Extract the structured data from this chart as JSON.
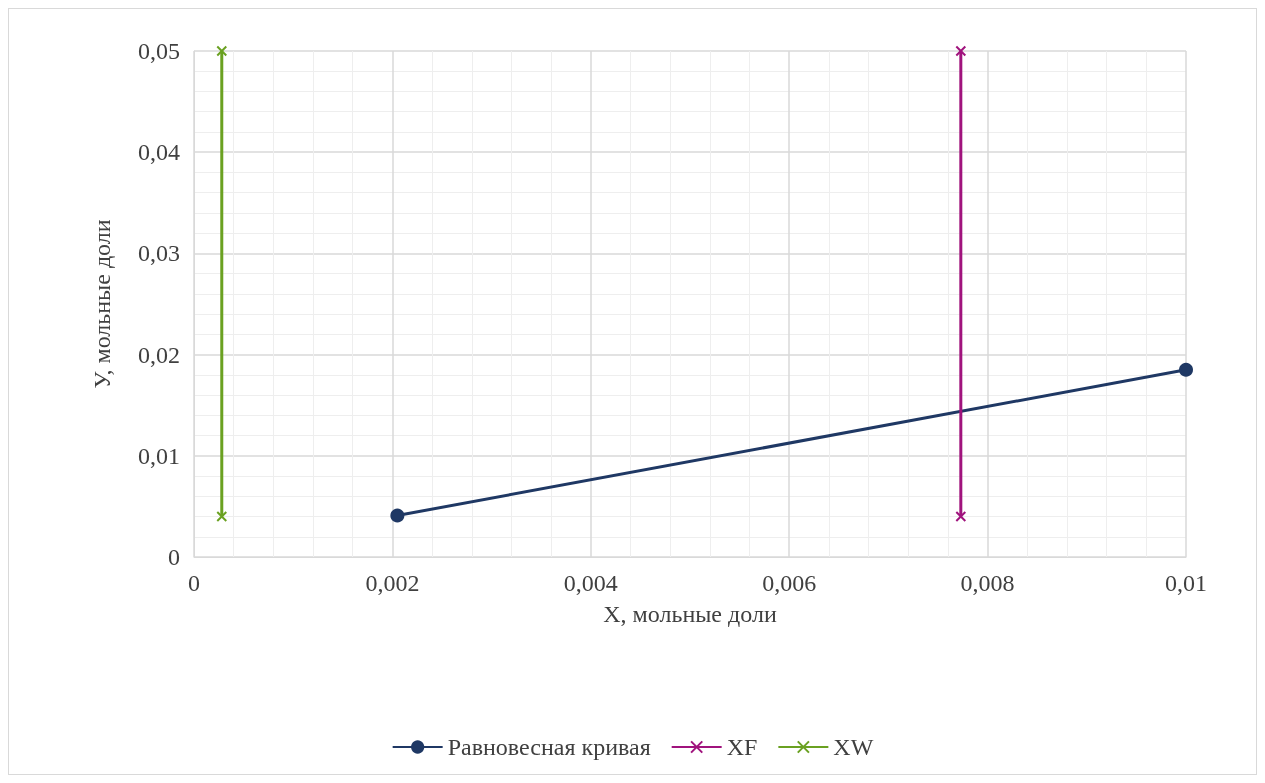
{
  "chart_data": {
    "type": "line",
    "xlabel": "X, мольные доли",
    "ylabel": "У, мольные доли",
    "xlim": [
      0,
      0.01
    ],
    "ylim": [
      0,
      0.05
    ],
    "xticks": [
      {
        "value": 0,
        "label": "0"
      },
      {
        "value": 0.002,
        "label": "0,002"
      },
      {
        "value": 0.004,
        "label": "0,004"
      },
      {
        "value": 0.006,
        "label": "0,006"
      },
      {
        "value": 0.008,
        "label": "0,008"
      },
      {
        "value": 0.01,
        "label": "0,01"
      }
    ],
    "yticks": [
      {
        "value": 0,
        "label": "0"
      },
      {
        "value": 0.01,
        "label": "0,01"
      },
      {
        "value": 0.02,
        "label": "0,02"
      },
      {
        "value": 0.03,
        "label": "0,03"
      },
      {
        "value": 0.04,
        "label": "0,04"
      },
      {
        "value": 0.05,
        "label": "0,05"
      }
    ],
    "grid": true,
    "legend": "bottom",
    "line_style": "solid",
    "series": [
      {
        "name": "Равновесная кривая",
        "color": "#1f3864",
        "marker": "circle",
        "x": [
          0.00205,
          0.01
        ],
        "values": [
          0.0041,
          0.0185
        ]
      },
      {
        "name": "XF",
        "color": "#a0137d",
        "marker": "cross",
        "x": [
          0.00773,
          0.00773
        ],
        "values": [
          0.004,
          0.05
        ]
      },
      {
        "name": "XW",
        "color": "#6aa121",
        "marker": "cross",
        "x": [
          0.00028,
          0.00028
        ],
        "values": [
          0.004,
          0.05
        ]
      }
    ]
  }
}
